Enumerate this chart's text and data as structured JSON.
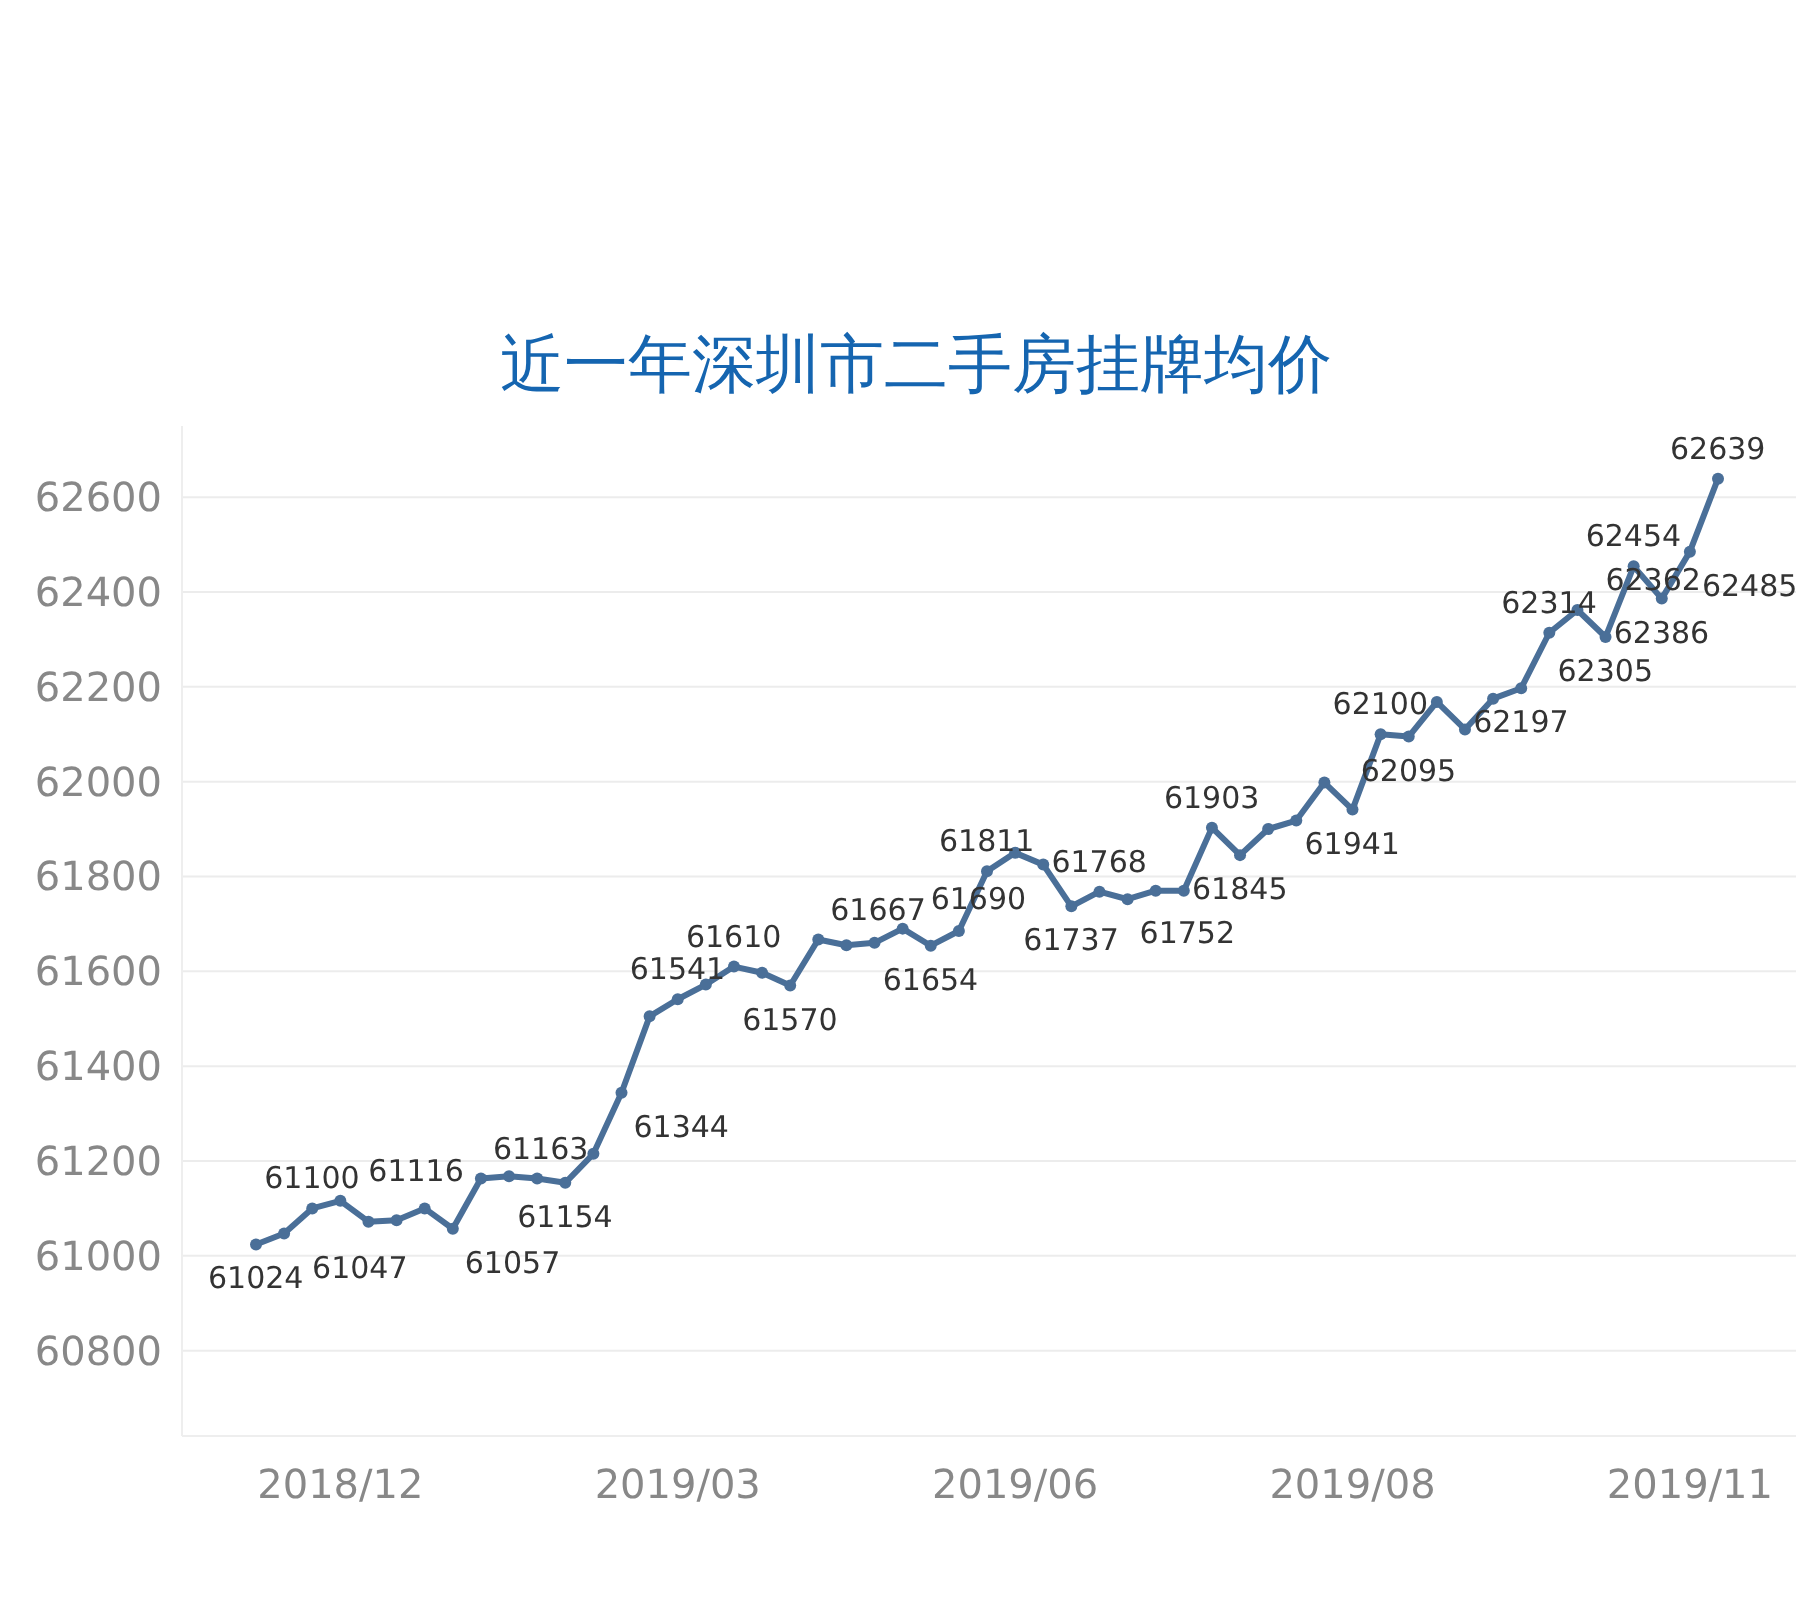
{
  "chart_data": {
    "type": "line",
    "title": "近一年深圳市二手房挂牌均价",
    "categories": [
      null,
      null,
      null,
      "2018/12",
      null,
      null,
      null,
      null,
      null,
      null,
      null,
      null,
      null,
      null,
      null,
      "2019/03",
      null,
      null,
      null,
      null,
      null,
      null,
      null,
      null,
      null,
      null,
      null,
      "2019/06",
      null,
      null,
      null,
      null,
      null,
      null,
      null,
      null,
      null,
      null,
      null,
      "2019/08",
      null,
      null,
      null,
      null,
      null,
      null,
      null,
      null,
      null,
      null,
      null,
      "2019/11",
      null
    ],
    "series": [
      {
        "color": "#4a6f98",
        "values": [
          61024,
          61047,
          61100,
          61116,
          61072,
          61075,
          61100,
          61057,
          61163,
          61168,
          61163,
          61154,
          61215,
          61344,
          61505,
          61541,
          61572,
          61610,
          61597,
          61570,
          61667,
          61655,
          61660,
          61690,
          61654,
          61685,
          61811,
          61850,
          61825,
          61737,
          61768,
          61752,
          61770,
          61770,
          61903,
          61845,
          61900,
          61918,
          61998,
          61941,
          62100,
          62095,
          62168,
          62110,
          62175,
          62197,
          62314,
          62362,
          62305,
          62454,
          62386,
          62485,
          62639
        ],
        "value_labels": [
          "61024",
          "61047",
          "61100",
          "61116",
          null,
          null,
          null,
          "61057",
          "61163",
          null,
          null,
          "61154",
          null,
          "61344",
          null,
          "61541",
          null,
          "61610",
          null,
          "61570",
          "61667",
          null,
          null,
          "61690",
          "61654",
          null,
          "61811",
          null,
          null,
          "61737",
          "61768",
          "61752",
          null,
          null,
          "61903",
          "61845",
          null,
          null,
          null,
          "61941",
          "62100",
          "62095",
          null,
          null,
          null,
          "62197",
          "62314",
          "62362",
          "62305",
          "62454",
          "62386",
          "62485",
          "62639"
        ]
      }
    ],
    "ylim": [
      60620,
      62750
    ],
    "yticks": [
      60800,
      61000,
      61200,
      61400,
      61600,
      61800,
      62000,
      62200,
      62400,
      62600
    ],
    "grid": "y",
    "marker": "circle",
    "line_style": "solid"
  }
}
